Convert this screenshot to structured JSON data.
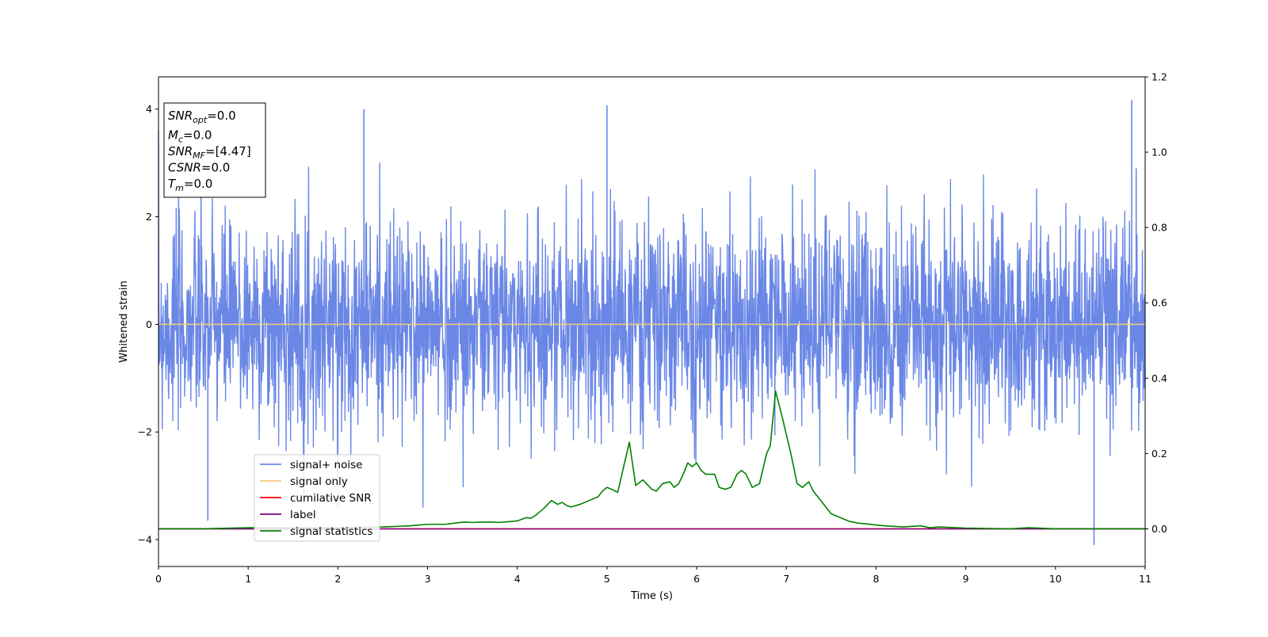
{
  "chart_data": {
    "type": "line",
    "xlabel": "Time (s)",
    "ylabel": "Whitened strain",
    "xlim": [
      0,
      11
    ],
    "ylim": [
      -4.5,
      4.6
    ],
    "y2lim": [
      -0.1,
      1.2
    ],
    "xticks": [
      "0",
      "1",
      "2",
      "3",
      "4",
      "5",
      "6",
      "7",
      "8",
      "9",
      "10",
      "11"
    ],
    "yticks": [
      "4",
      "2",
      "0",
      "−2",
      "−4"
    ],
    "y2ticks": [
      "1.2",
      "1.0",
      "0.8",
      "0.6",
      "0.4",
      "0.2",
      "0.0"
    ],
    "grid": false,
    "legend": {
      "position": "lower-left",
      "entries": [
        "signal+ noise",
        "signal only",
        "cumilative SNR",
        "label",
        "signal statistics"
      ]
    },
    "info_box": {
      "lines": [
        {
          "sym": "SNR",
          "sub": "opt",
          "val": "=0.0"
        },
        {
          "sym": "M",
          "sub": "c",
          "val": "=0.0"
        },
        {
          "sym": "SNR",
          "sub": "MF",
          "val": "=[4.47]"
        },
        {
          "sym": "CSNR",
          "sub": "",
          "val": "=0.0"
        },
        {
          "sym": "T",
          "sub": "m",
          "val": "=0.0"
        }
      ]
    },
    "series": [
      {
        "name": "signal+ noise",
        "axis": "left",
        "color": "#6a87e6",
        "description": "whitened noise, roughly unit variance",
        "noise_sigma": 0.95,
        "peaks": [
          [
            0.55,
            -3.65
          ],
          [
            2.29,
            4.0
          ],
          [
            5.0,
            4.07
          ],
          [
            10.43,
            -4.1
          ],
          [
            10.85,
            4.17
          ],
          [
            10.9,
            2.9
          ]
        ]
      },
      {
        "name": "signal only",
        "axis": "left",
        "color": "#f5c97a",
        "x": [
          0,
          11
        ],
        "values": [
          0,
          0
        ]
      },
      {
        "name": "cumilative SNR",
        "axis": "right",
        "color": "#ff0000",
        "x": [
          0,
          11
        ],
        "values": [
          0,
          0
        ]
      },
      {
        "name": "label",
        "axis": "right",
        "color": "#800080",
        "x": [
          0,
          11
        ],
        "values": [
          0,
          0
        ]
      },
      {
        "name": "signal statistics",
        "axis": "right",
        "color": "#008000",
        "x": [
          0,
          0.5,
          1.0,
          1.5,
          2.0,
          2.5,
          2.8,
          3.0,
          3.2,
          3.3,
          3.4,
          3.5,
          3.6,
          3.7,
          3.8,
          3.9,
          4.0,
          4.1,
          4.15,
          4.2,
          4.3,
          4.38,
          4.45,
          4.5,
          4.55,
          4.6,
          4.7,
          4.8,
          4.9,
          4.95,
          5.0,
          5.05,
          5.12,
          5.2,
          5.25,
          5.32,
          5.4,
          5.5,
          5.55,
          5.62,
          5.7,
          5.75,
          5.8,
          5.85,
          5.9,
          5.95,
          6.0,
          6.05,
          6.1,
          6.2,
          6.25,
          6.32,
          6.38,
          6.45,
          6.5,
          6.55,
          6.62,
          6.7,
          6.78,
          6.82,
          6.88,
          6.95,
          7.0,
          7.05,
          7.12,
          7.18,
          7.25,
          7.3,
          7.4,
          7.5,
          7.6,
          7.7,
          7.8,
          7.9,
          8.0,
          8.1,
          8.3,
          8.5,
          8.6,
          8.7,
          9.0,
          9.5,
          9.7,
          10.0,
          10.5,
          11.0
        ],
        "values": [
          0.0,
          0.0,
          0.003,
          0.003,
          0.003,
          0.005,
          0.008,
          0.012,
          0.012,
          0.015,
          0.018,
          0.017,
          0.018,
          0.018,
          0.017,
          0.019,
          0.021,
          0.03,
          0.028,
          0.035,
          0.055,
          0.075,
          0.065,
          0.07,
          0.062,
          0.058,
          0.065,
          0.075,
          0.085,
          0.1,
          0.11,
          0.105,
          0.097,
          0.18,
          0.23,
          0.115,
          0.13,
          0.105,
          0.1,
          0.12,
          0.125,
          0.11,
          0.12,
          0.145,
          0.175,
          0.165,
          0.175,
          0.155,
          0.145,
          0.145,
          0.11,
          0.105,
          0.11,
          0.145,
          0.155,
          0.145,
          0.11,
          0.12,
          0.2,
          0.22,
          0.365,
          0.3,
          0.25,
          0.2,
          0.12,
          0.11,
          0.125,
          0.1,
          0.07,
          0.04,
          0.03,
          0.02,
          0.015,
          0.013,
          0.01,
          0.008,
          0.005,
          0.008,
          0.003,
          0.005,
          0.002,
          0.0,
          0.003,
          0.0,
          0.0,
          0.0
        ]
      }
    ]
  }
}
